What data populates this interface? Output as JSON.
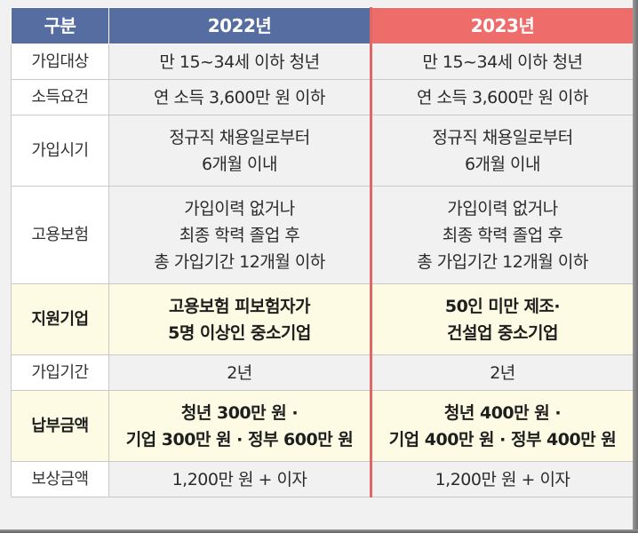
{
  "header": {
    "label": "구분",
    "col_2022": "2022년",
    "col_2023": "2023년"
  },
  "rows": [
    {
      "label": "가입대상",
      "y2022": [
        "만 15~34세 이하 청년"
      ],
      "y2023": [
        "만 15~34세 이하 청년"
      ],
      "highlight": false
    },
    {
      "label": "소득요건",
      "y2022": [
        "연 소득 3,600만 원 이하"
      ],
      "y2023": [
        "연 소득 3,600만 원 이하"
      ],
      "highlight": false
    },
    {
      "label": "가입시기",
      "y2022": [
        "정규직 채용일로부터",
        "6개월 이내"
      ],
      "y2023": [
        "정규직 채용일로부터",
        "6개월 이내"
      ],
      "highlight": false
    },
    {
      "label": "고용보험",
      "y2022": [
        "가입이력 없거나",
        "최종 학력 졸업 후",
        "총 가입기간 12개월 이하"
      ],
      "y2023": [
        "가입이력 없거나",
        "최종 학력 졸업 후",
        "총 가입기간 12개월 이하"
      ],
      "highlight": false
    },
    {
      "label": "지원기업",
      "y2022": [
        "고용보험 피보험자가",
        "5명 이상인 중소기업"
      ],
      "y2023": [
        "50인 미만 제조·",
        "건설업 중소기업"
      ],
      "highlight": true
    },
    {
      "label": "가입기간",
      "y2022": [
        "2년"
      ],
      "y2023": [
        "2년"
      ],
      "highlight": false
    },
    {
      "label": "납부금액",
      "y2022": [
        "청년 300만 원 ·",
        "기업 300만 원 · 정부 600만 원"
      ],
      "y2023": [
        "청년 400만 원 ·",
        "기업 400만 원 · 정부 400만 원"
      ],
      "highlight": true
    },
    {
      "label": "보상금액",
      "y2022": [
        "1,200만 원 + 이자"
      ],
      "y2023": [
        "1,200만 원 + 이자"
      ],
      "highlight": false
    }
  ],
  "colors": {
    "header_blue": "#566da2",
    "header_red": "#ee6d6a",
    "highlight_bg": "#fdfbe3"
  }
}
